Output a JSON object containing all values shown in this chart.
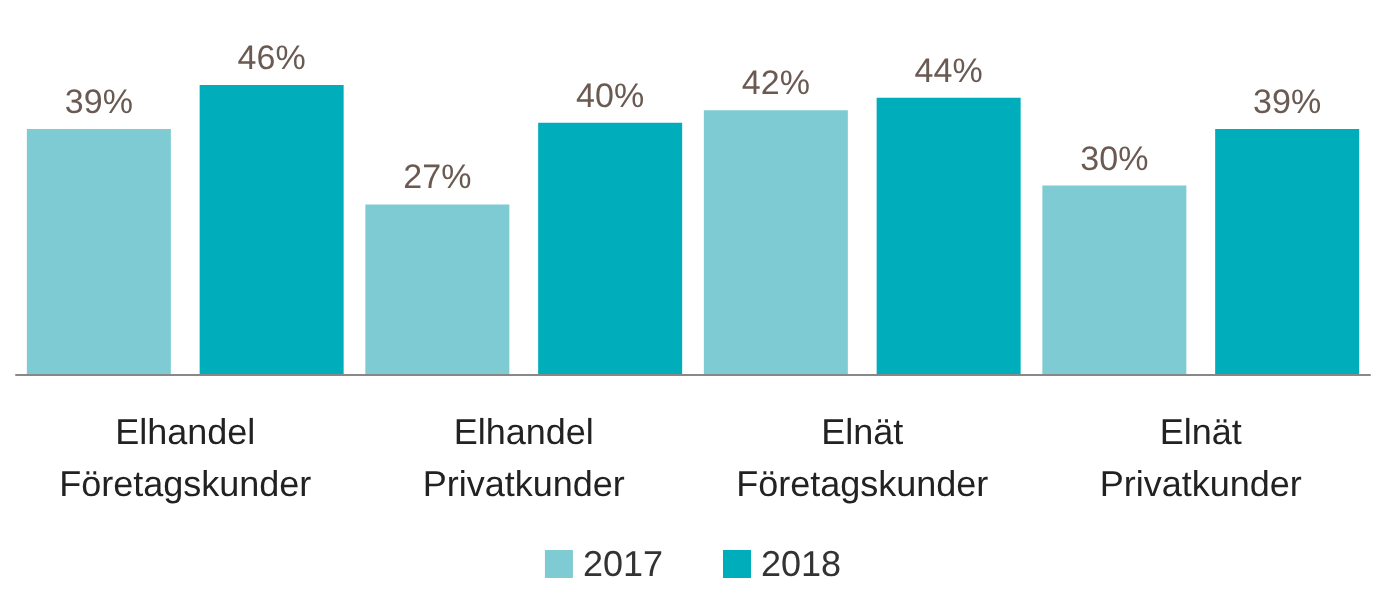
{
  "chart_data": {
    "type": "bar",
    "categories": [
      "Elhandel Företagskunder",
      "Elhandel Privatkunder",
      "Elnät Företagskunder",
      "Elnät Privatkunder"
    ],
    "series": [
      {
        "name": "2017",
        "color": "#7fcbd3",
        "values": [
          39,
          27,
          42,
          30
        ],
        "value_labels": [
          "39%",
          "27%",
          "42%",
          "30%"
        ]
      },
      {
        "name": "2018",
        "color": "#00adbb",
        "values": [
          46,
          40,
          44,
          39
        ],
        "value_labels": [
          "46%",
          "40%",
          "44%",
          "39%"
        ]
      }
    ],
    "legend": "bottom",
    "grid": false
  }
}
